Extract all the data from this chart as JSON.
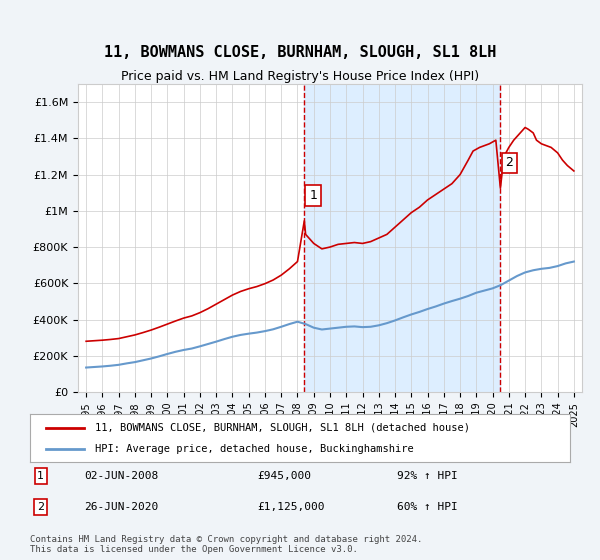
{
  "title": "11, BOWMANS CLOSE, BURNHAM, SLOUGH, SL1 8LH",
  "subtitle": "Price paid vs. HM Land Registry's House Price Index (HPI)",
  "legend_line1": "11, BOWMANS CLOSE, BURNHAM, SLOUGH, SL1 8LH (detached house)",
  "legend_line2": "HPI: Average price, detached house, Buckinghamshire",
  "annotation1_label": "1",
  "annotation1_date": "02-JUN-2008",
  "annotation1_price": "£945,000",
  "annotation1_hpi": "92% ↑ HPI",
  "annotation2_label": "2",
  "annotation2_date": "26-JUN-2020",
  "annotation2_price": "£1,125,000",
  "annotation2_hpi": "60% ↑ HPI",
  "footnote": "Contains HM Land Registry data © Crown copyright and database right 2024.\nThis data is licensed under the Open Government Licence v3.0.",
  "sale1_x": 2008.42,
  "sale1_y": 945000,
  "sale2_x": 2020.48,
  "sale2_y": 1125000,
  "shade_x1": 2008.42,
  "shade_x2": 2020.48,
  "red_color": "#cc0000",
  "blue_color": "#6699cc",
  "shade_color": "#ddeeff",
  "background_color": "#f0f4f8",
  "plot_bg_color": "#ffffff",
  "ylim": [
    0,
    1700000
  ],
  "xlim": [
    1994.5,
    2025.5
  ],
  "yticks": [
    0,
    200000,
    400000,
    600000,
    800000,
    1000000,
    1200000,
    1400000,
    1600000
  ],
  "xticks": [
    1995,
    1996,
    1997,
    1998,
    1999,
    2000,
    2001,
    2002,
    2003,
    2004,
    2005,
    2006,
    2007,
    2008,
    2009,
    2010,
    2011,
    2012,
    2013,
    2014,
    2015,
    2016,
    2017,
    2018,
    2019,
    2020,
    2021,
    2022,
    2023,
    2024,
    2025
  ],
  "red_x": [
    1995.0,
    1995.5,
    1996.0,
    1996.5,
    1997.0,
    1997.5,
    1998.0,
    1998.5,
    1999.0,
    1999.5,
    2000.0,
    2000.5,
    2001.0,
    2001.5,
    2002.0,
    2002.5,
    2003.0,
    2003.5,
    2004.0,
    2004.5,
    2005.0,
    2005.5,
    2006.0,
    2006.5,
    2007.0,
    2007.5,
    2008.0,
    2008.42,
    2008.5,
    2009.0,
    2009.5,
    2010.0,
    2010.5,
    2011.0,
    2011.5,
    2012.0,
    2012.5,
    2013.0,
    2013.5,
    2014.0,
    2014.5,
    2015.0,
    2015.5,
    2016.0,
    2016.5,
    2017.0,
    2017.5,
    2018.0,
    2018.5,
    2018.8,
    2019.0,
    2019.2,
    2019.5,
    2019.8,
    2020.0,
    2020.2,
    2020.48,
    2020.7,
    2021.0,
    2021.3,
    2021.6,
    2021.8,
    2022.0,
    2022.2,
    2022.5,
    2022.7,
    2023.0,
    2023.3,
    2023.6,
    2024.0,
    2024.3,
    2024.6,
    2025.0
  ],
  "red_y": [
    280000,
    283000,
    286000,
    290000,
    295000,
    305000,
    315000,
    328000,
    342000,
    358000,
    375000,
    392000,
    408000,
    420000,
    438000,
    460000,
    485000,
    510000,
    535000,
    555000,
    570000,
    582000,
    598000,
    618000,
    645000,
    680000,
    720000,
    945000,
    870000,
    820000,
    790000,
    800000,
    815000,
    820000,
    825000,
    820000,
    830000,
    850000,
    870000,
    910000,
    950000,
    990000,
    1020000,
    1060000,
    1090000,
    1120000,
    1150000,
    1200000,
    1280000,
    1330000,
    1340000,
    1350000,
    1360000,
    1370000,
    1380000,
    1390000,
    1125000,
    1300000,
    1350000,
    1390000,
    1420000,
    1440000,
    1460000,
    1450000,
    1430000,
    1390000,
    1370000,
    1360000,
    1350000,
    1320000,
    1280000,
    1250000,
    1220000
  ],
  "blue_x": [
    1995.0,
    1995.5,
    1996.0,
    1996.5,
    1997.0,
    1997.5,
    1998.0,
    1998.5,
    1999.0,
    1999.5,
    2000.0,
    2000.5,
    2001.0,
    2001.5,
    2002.0,
    2002.5,
    2003.0,
    2003.5,
    2004.0,
    2004.5,
    2005.0,
    2005.5,
    2006.0,
    2006.5,
    2007.0,
    2007.5,
    2008.0,
    2008.5,
    2009.0,
    2009.5,
    2010.0,
    2010.5,
    2011.0,
    2011.5,
    2012.0,
    2012.5,
    2013.0,
    2013.5,
    2014.0,
    2014.5,
    2015.0,
    2015.5,
    2016.0,
    2016.5,
    2017.0,
    2017.5,
    2018.0,
    2018.5,
    2019.0,
    2019.5,
    2020.0,
    2020.5,
    2021.0,
    2021.5,
    2022.0,
    2022.5,
    2023.0,
    2023.5,
    2024.0,
    2024.5,
    2025.0
  ],
  "blue_y": [
    135000,
    138000,
    141000,
    145000,
    150000,
    158000,
    165000,
    175000,
    185000,
    197000,
    210000,
    222000,
    232000,
    240000,
    252000,
    265000,
    278000,
    292000,
    305000,
    315000,
    322000,
    328000,
    336000,
    346000,
    360000,
    375000,
    388000,
    375000,
    355000,
    345000,
    350000,
    355000,
    360000,
    362000,
    358000,
    360000,
    368000,
    380000,
    395000,
    412000,
    428000,
    442000,
    458000,
    472000,
    488000,
    502000,
    515000,
    530000,
    548000,
    560000,
    572000,
    590000,
    615000,
    640000,
    660000,
    672000,
    680000,
    685000,
    695000,
    710000,
    720000
  ]
}
